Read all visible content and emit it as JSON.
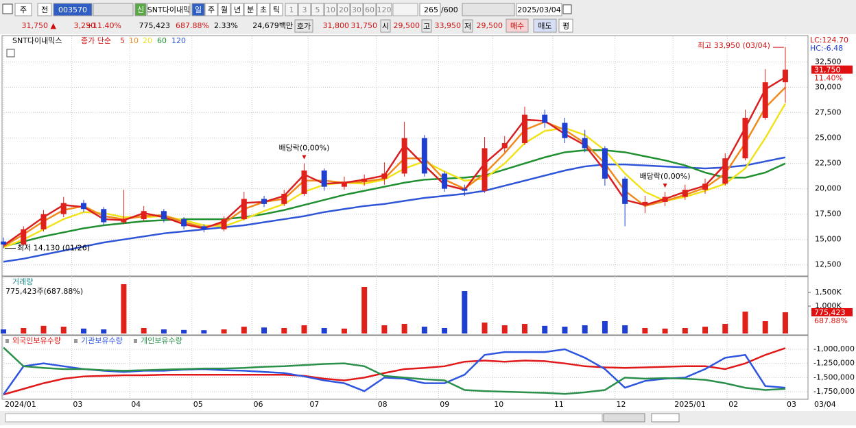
{
  "toolbar": {
    "market": "주",
    "prev": "전",
    "code": "003570",
    "new": "신",
    "name": "SNT다이내믹",
    "periods": [
      "일",
      "주",
      "월",
      "년",
      "분",
      "초",
      "틱"
    ],
    "intervals": [
      "1",
      "3",
      "5",
      "10",
      "20",
      "30",
      "60",
      "120"
    ],
    "count": "265",
    "max": "/600",
    "date": "2025/03/04"
  },
  "info_bar": {
    "price": "31,750 ▲",
    "change": "3,250",
    "change_pct": "+11.40%",
    "volume": "775,423",
    "volume_pct": "687.88%",
    "turnover": "2.33%",
    "amount": "24,679백만",
    "quote_label": "호가",
    "ask": "31,800",
    "bid": "31,750",
    "open_label": "시",
    "open": "29,500",
    "high_label": "고",
    "high": "33,950",
    "low_label": "저",
    "low": "29,500",
    "buy": "매수",
    "sell": "매도",
    "avg": "평"
  },
  "chart_data": [
    {
      "type": "candlestick",
      "title": "SNT다이내믹스",
      "ma_label": "종가 단순",
      "up_color": "#e0201a",
      "down_color": "#1f3fd0",
      "ohlc": [
        [
          14800,
          15200,
          14130,
          14500
        ],
        [
          14500,
          16300,
          14400,
          16000
        ],
        [
          16000,
          17900,
          15800,
          17500
        ],
        [
          17500,
          19200,
          17200,
          18600
        ],
        [
          18600,
          18900,
          17700,
          18000
        ],
        [
          18000,
          18200,
          16400,
          16700
        ],
        [
          16700,
          19900,
          16500,
          17000
        ],
        [
          17000,
          18300,
          16800,
          17800
        ],
        [
          17800,
          18000,
          16700,
          17000
        ],
        [
          17000,
          17200,
          16000,
          16300
        ],
        [
          16300,
          16500,
          15700,
          16000
        ],
        [
          16000,
          17300,
          15800,
          17000
        ],
        [
          17000,
          19700,
          16900,
          19000
        ],
        [
          19000,
          19300,
          18200,
          18500
        ],
        [
          18500,
          19900,
          18300,
          19500
        ],
        [
          19500,
          22500,
          19300,
          21800
        ],
        [
          21800,
          22000,
          19800,
          20200
        ],
        [
          20200,
          21200,
          19900,
          20700
        ],
        [
          20700,
          21400,
          20300,
          21000
        ],
        [
          21000,
          22600,
          20400,
          21500
        ],
        [
          21500,
          26600,
          21200,
          25000
        ],
        [
          25000,
          25300,
          21200,
          21500
        ],
        [
          21500,
          21700,
          19700,
          20000
        ],
        [
          20000,
          20400,
          19300,
          19800
        ],
        [
          19800,
          25100,
          19600,
          24000
        ],
        [
          24000,
          25200,
          23600,
          24500
        ],
        [
          24500,
          28100,
          24300,
          27300
        ],
        [
          27300,
          27800,
          26000,
          26500
        ],
        [
          26500,
          27000,
          24500,
          25000
        ],
        [
          25000,
          25800,
          23600,
          24000
        ],
        [
          24000,
          24200,
          20300,
          21000
        ],
        [
          21000,
          21200,
          16300,
          18500
        ],
        [
          18500,
          19300,
          17600,
          18700
        ],
        [
          18700,
          19700,
          18300,
          19200
        ],
        [
          19200,
          20400,
          18900,
          19900
        ],
        [
          19900,
          21000,
          19500,
          20500
        ],
        [
          20500,
          23500,
          20300,
          23000
        ],
        [
          23000,
          27800,
          22800,
          27000
        ],
        [
          27000,
          31800,
          26800,
          30500
        ],
        [
          30500,
          33950,
          28500,
          31750
        ]
      ],
      "series": [
        {
          "name": "5",
          "color": "#d81e1e",
          "values": [
            14400,
            15800,
            17200,
            18400,
            18200,
            17000,
            16900,
            17600,
            17200,
            16500,
            16100,
            16800,
            18600,
            18700,
            19300,
            21400,
            20500,
            20600,
            20900,
            21300,
            24300,
            22300,
            20400,
            19900,
            22500,
            24200,
            26800,
            26700,
            25400,
            24300,
            21800,
            18900,
            18400,
            19000,
            19700,
            20300,
            22400,
            26000,
            29800,
            31000
          ]
        },
        {
          "name": "10",
          "color": "#f08a1c",
          "values": [
            14300,
            15500,
            16800,
            17900,
            18300,
            17300,
            17000,
            17300,
            17400,
            16700,
            16200,
            16600,
            18000,
            18700,
            19000,
            20800,
            20800,
            20600,
            20700,
            21000,
            23000,
            23000,
            20900,
            20000,
            21500,
            23500,
            25800,
            26600,
            25800,
            24500,
            22500,
            19800,
            18300,
            18800,
            19400,
            20100,
            21500,
            24500,
            28000,
            30000
          ]
        },
        {
          "name": "20",
          "color": "#f2e21a",
          "values": [
            14200,
            15000,
            16000,
            17000,
            17700,
            17600,
            17200,
            17200,
            17300,
            16900,
            16400,
            16300,
            17000,
            17800,
            18500,
            19700,
            20400,
            20600,
            20500,
            20900,
            22000,
            22700,
            21700,
            20800,
            21000,
            22500,
            24500,
            25700,
            26000,
            25300,
            23800,
            21500,
            19700,
            18800,
            19200,
            19800,
            20500,
            22000,
            25000,
            28400
          ]
        },
        {
          "name": "60",
          "color": "#1f8f2f",
          "values": [
            14300,
            14800,
            15300,
            15700,
            16100,
            16400,
            16600,
            16800,
            16900,
            17000,
            17000,
            17000,
            17200,
            17500,
            17900,
            18400,
            18900,
            19400,
            19800,
            20200,
            20600,
            20900,
            21000,
            21100,
            21300,
            21900,
            22500,
            23100,
            23600,
            23800,
            23800,
            23600,
            23200,
            22800,
            22300,
            21600,
            21100,
            21100,
            21600,
            22500
          ]
        },
        {
          "name": "120",
          "color": "#2e55d8",
          "values": [
            12800,
            13100,
            13500,
            13900,
            14300,
            14700,
            15000,
            15300,
            15600,
            15800,
            16000,
            16200,
            16400,
            16700,
            17000,
            17300,
            17700,
            18000,
            18300,
            18500,
            18800,
            19100,
            19300,
            19500,
            19800,
            20300,
            20800,
            21300,
            21800,
            22200,
            22400,
            22400,
            22300,
            22200,
            22100,
            22000,
            22100,
            22300,
            22700,
            23100
          ]
        }
      ],
      "ylim": [
        11400,
        34900
      ],
      "yticks": [
        {
          "value": 12500,
          "label": "12,500"
        },
        {
          "value": 15000,
          "label": "15,000"
        },
        {
          "value": 17500,
          "label": "17,500"
        },
        {
          "value": 20000,
          "label": "20,000"
        },
        {
          "value": 22500,
          "label": "22,500"
        },
        {
          "value": 25000,
          "label": "25,000"
        },
        {
          "value": 27500,
          "label": "27,500"
        },
        {
          "value": 30000,
          "label": "30,000"
        },
        {
          "value": 32500,
          "label": "32,500"
        }
      ],
      "lc": "LC:124.70",
      "hc": "HC:-6.48",
      "price_tag": {
        "value": 31750,
        "label": "31,750"
      },
      "change_label": "11.40%",
      "annotations": [
        {
          "text": "최고 33,950 (03/04)",
          "index": 39,
          "at": "high"
        },
        {
          "text": "최저 14,130 (01/26)",
          "index": 0,
          "at": "low"
        },
        {
          "text": "배당락(0,00%)",
          "index": 15,
          "at": "high"
        },
        {
          "text": "배당락(0,00%)",
          "index": 33,
          "at": "high"
        }
      ]
    },
    {
      "type": "bar",
      "title": "거래량",
      "summary": "775,423주(687.88%)",
      "values": [
        150000,
        200000,
        280000,
        250000,
        180000,
        150000,
        1800000,
        200000,
        150000,
        130000,
        120000,
        150000,
        250000,
        220000,
        200000,
        300000,
        200000,
        180000,
        1700000,
        300000,
        350000,
        250000,
        200000,
        1550000,
        400000,
        300000,
        350000,
        280000,
        250000,
        300000,
        450000,
        300000,
        200000,
        180000,
        200000,
        250000,
        350000,
        800000,
        450000,
        775423
      ],
      "ylim": [
        0,
        2050000
      ],
      "yticks": [
        {
          "value": 1000000,
          "label": "1,000K"
        },
        {
          "value": 1500000,
          "label": "1,500K"
        }
      ],
      "last_tag": {
        "value": 775423,
        "label": "775,423"
      },
      "last_pct": "687.88%"
    },
    {
      "type": "line",
      "series": [
        {
          "name": "외국인보유수량",
          "color": "#e01818",
          "values": [
            -1800000,
            -1700000,
            -1600000,
            -1520000,
            -1480000,
            -1470000,
            -1460000,
            -1460000,
            -1450000,
            -1450000,
            -1450000,
            -1450000,
            -1450000,
            -1450000,
            -1450000,
            -1470000,
            -1520000,
            -1550000,
            -1500000,
            -1420000,
            -1350000,
            -1330000,
            -1300000,
            -1220000,
            -1200000,
            -1220000,
            -1200000,
            -1210000,
            -1250000,
            -1300000,
            -1320000,
            -1330000,
            -1320000,
            -1310000,
            -1300000,
            -1300000,
            -1350000,
            -1250000,
            -1100000,
            -980000
          ]
        },
        {
          "name": "기관보유수량",
          "color": "#2e55e0",
          "values": [
            -1800000,
            -1300000,
            -1250000,
            -1300000,
            -1350000,
            -1380000,
            -1400000,
            -1380000,
            -1380000,
            -1360000,
            -1350000,
            -1370000,
            -1380000,
            -1400000,
            -1420000,
            -1480000,
            -1550000,
            -1600000,
            -1740000,
            -1500000,
            -1520000,
            -1600000,
            -1600000,
            -1450000,
            -1100000,
            -1050000,
            -1050000,
            -1050000,
            -1000000,
            -1150000,
            -1350000,
            -1680000,
            -1560000,
            -1520000,
            -1500000,
            -1350000,
            -1150000,
            -1100000,
            -1650000,
            -1680000
          ]
        },
        {
          "name": "개인보유수량",
          "color": "#2a8f4a",
          "values": [
            -970000,
            -1300000,
            -1330000,
            -1350000,
            -1350000,
            -1370000,
            -1380000,
            -1370000,
            -1360000,
            -1350000,
            -1340000,
            -1340000,
            -1330000,
            -1310000,
            -1300000,
            -1280000,
            -1260000,
            -1250000,
            -1300000,
            -1470000,
            -1500000,
            -1530000,
            -1550000,
            -1720000,
            -1740000,
            -1750000,
            -1760000,
            -1770000,
            -1790000,
            -1760000,
            -1720000,
            -1500000,
            -1520000,
            -1510000,
            -1520000,
            -1540000,
            -1600000,
            -1680000,
            -1720000,
            -1700000
          ]
        }
      ],
      "ylim": [
        -1871000,
        -782000
      ],
      "yticks": [
        {
          "value": -1000000,
          "label": "-1,000,000"
        },
        {
          "value": -1250000,
          "label": "-1,250,000"
        },
        {
          "value": -1500000,
          "label": "-1,500,000"
        },
        {
          "value": -1750000,
          "label": "-1,750,000"
        }
      ],
      "xlim": [
        -0.07,
        40.13
      ],
      "xticks": [
        {
          "value": 0,
          "label": "2024/01"
        },
        {
          "value": 3.4,
          "label": "03"
        },
        {
          "value": 6.3,
          "label": "04"
        },
        {
          "value": 9.4,
          "label": "05"
        },
        {
          "value": 12.4,
          "label": "06"
        },
        {
          "value": 15.2,
          "label": "07"
        },
        {
          "value": 18.6,
          "label": "08"
        },
        {
          "value": 21.7,
          "label": "09"
        },
        {
          "value": 24.4,
          "label": "10"
        },
        {
          "value": 27.4,
          "label": "11"
        },
        {
          "value": 30.5,
          "label": "12"
        },
        {
          "value": 33.4,
          "label": "2025/01"
        },
        {
          "value": 36.1,
          "label": "02"
        },
        {
          "value": 39,
          "label": "03"
        }
      ],
      "date_label": "03/04"
    }
  ]
}
